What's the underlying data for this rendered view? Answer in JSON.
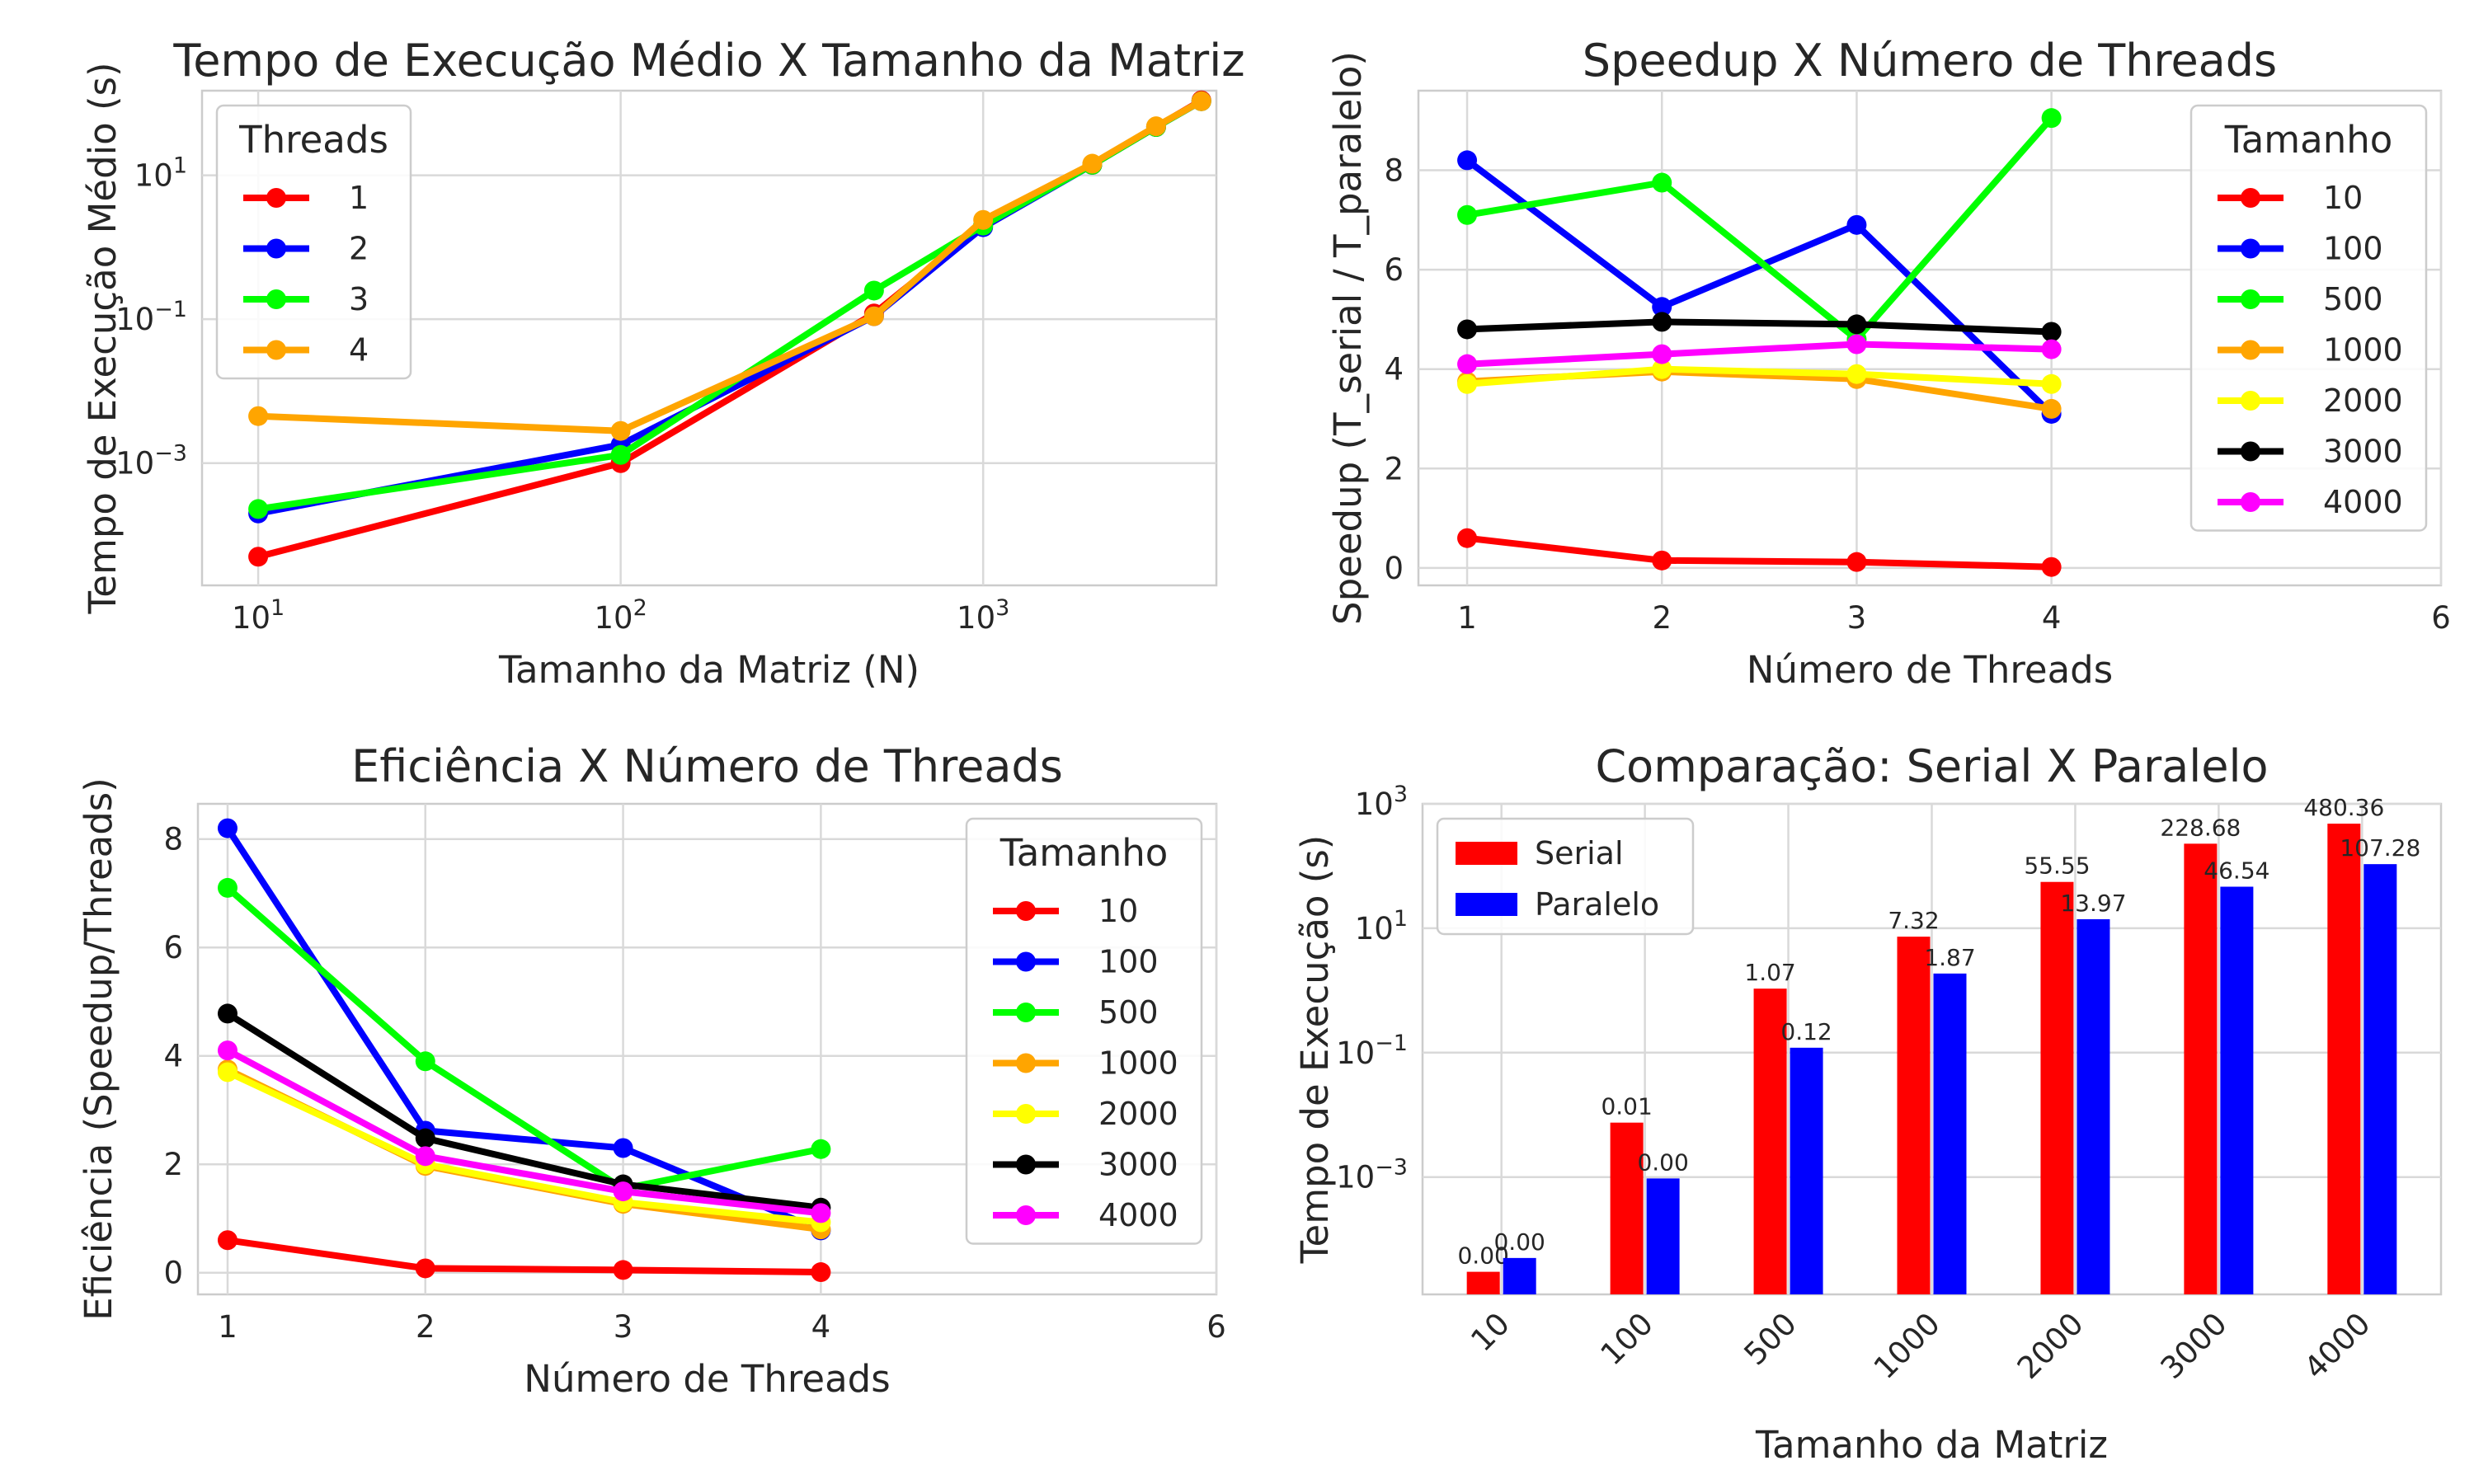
{
  "chart_data": [
    {
      "type": "line",
      "title": "Tempo de Execução Médio X Tamanho da Matriz",
      "xlabel": "Tamanho da Matriz (N)",
      "ylabel": "Tempo de Execução Médio (s)",
      "xscale": "log",
      "yscale": "log",
      "xlim": [
        7,
        4400
      ],
      "ylim": [
        2e-05,
        150
      ],
      "xticks": [
        {
          "v": 10,
          "label": "10^1"
        },
        {
          "v": 100,
          "label": "10^2"
        },
        {
          "v": 1000,
          "label": "10^3"
        }
      ],
      "yticks": [
        {
          "v": 0.001,
          "label": "10^-3"
        },
        {
          "v": 0.1,
          "label": "10^-1"
        },
        {
          "v": 10,
          "label": "10^1"
        }
      ],
      "legend": {
        "title": "Threads",
        "placement": "top-left"
      },
      "grid": true,
      "x": [
        10,
        100,
        500,
        1000,
        2000,
        3000,
        4000
      ],
      "series": [
        {
          "name": "1",
          "color": "#ff0000",
          "values": [
            5e-05,
            0.001,
            0.12,
            2.0,
            14.0,
            47.0,
            110.0
          ]
        },
        {
          "name": "2",
          "color": "#0000ff",
          "values": [
            0.0002,
            0.0018,
            0.11,
            1.9,
            14.0,
            47.0,
            107.0
          ]
        },
        {
          "name": "3",
          "color": "#00ff00",
          "values": [
            0.00023,
            0.0013,
            0.25,
            2.0,
            14.0,
            47.0,
            107.0
          ]
        },
        {
          "name": "4",
          "color": "#ffa500",
          "values": [
            0.0045,
            0.0028,
            0.11,
            2.4,
            14.5,
            48.0,
            107.0
          ]
        }
      ]
    },
    {
      "type": "line",
      "title": "Speedup X Número de Threads",
      "xlabel": "Número de Threads",
      "ylabel": "Speedup (T_serial / T_paralelo)",
      "xlim": [
        0.75,
        6
      ],
      "ylim": [
        -0.35,
        9.6
      ],
      "xticks": [
        {
          "v": 1,
          "label": "1"
        },
        {
          "v": 2,
          "label": "2"
        },
        {
          "v": 3,
          "label": "3"
        },
        {
          "v": 4,
          "label": "4"
        },
        {
          "v": 6,
          "label": "6"
        }
      ],
      "yticks": [
        {
          "v": 0,
          "label": "0"
        },
        {
          "v": 2,
          "label": "2"
        },
        {
          "v": 4,
          "label": "4"
        },
        {
          "v": 6,
          "label": "6"
        },
        {
          "v": 8,
          "label": "8"
        }
      ],
      "legend": {
        "title": "Tamanho",
        "placement": "top-right"
      },
      "grid": true,
      "x": [
        1,
        2,
        3,
        4
      ],
      "series": [
        {
          "name": "10",
          "color": "#ff0000",
          "values": [
            0.6,
            0.15,
            0.12,
            0.02
          ]
        },
        {
          "name": "100",
          "color": "#0000ff",
          "values": [
            8.2,
            5.25,
            6.9,
            3.1
          ]
        },
        {
          "name": "500",
          "color": "#00ff00",
          "values": [
            7.1,
            7.75,
            4.6,
            9.05
          ]
        },
        {
          "name": "1000",
          "color": "#ffa500",
          "values": [
            3.75,
            3.95,
            3.8,
            3.2
          ]
        },
        {
          "name": "2000",
          "color": "#ffff00",
          "values": [
            3.7,
            4.0,
            3.9,
            3.7
          ]
        },
        {
          "name": "3000",
          "color": "#000000",
          "values": [
            4.8,
            4.95,
            4.9,
            4.75
          ]
        },
        {
          "name": "4000",
          "color": "#ff00ff",
          "values": [
            4.1,
            4.3,
            4.5,
            4.4
          ]
        }
      ]
    },
    {
      "type": "line",
      "title": "Eficiência X Número de Threads",
      "xlabel": "Número de Threads",
      "ylabel": "Eficiência (Speedup/Threads)",
      "xlim": [
        0.85,
        6
      ],
      "ylim": [
        -0.4,
        8.65
      ],
      "xticks": [
        {
          "v": 1,
          "label": "1"
        },
        {
          "v": 2,
          "label": "2"
        },
        {
          "v": 3,
          "label": "3"
        },
        {
          "v": 4,
          "label": "4"
        },
        {
          "v": 6,
          "label": "6"
        }
      ],
      "yticks": [
        {
          "v": 0,
          "label": "0"
        },
        {
          "v": 2,
          "label": "2"
        },
        {
          "v": 4,
          "label": "4"
        },
        {
          "v": 6,
          "label": "6"
        },
        {
          "v": 8,
          "label": "8"
        }
      ],
      "legend": {
        "title": "Tamanho",
        "placement": "top-right"
      },
      "grid": true,
      "x": [
        1,
        2,
        3,
        4
      ],
      "series": [
        {
          "name": "10",
          "color": "#ff0000",
          "values": [
            0.6,
            0.08,
            0.05,
            0.01
          ]
        },
        {
          "name": "100",
          "color": "#0000ff",
          "values": [
            8.2,
            2.62,
            2.3,
            0.78
          ]
        },
        {
          "name": "500",
          "color": "#00ff00",
          "values": [
            7.1,
            3.9,
            1.55,
            2.28
          ]
        },
        {
          "name": "1000",
          "color": "#ffa500",
          "values": [
            3.75,
            1.97,
            1.27,
            0.8
          ]
        },
        {
          "name": "2000",
          "color": "#ffff00",
          "values": [
            3.7,
            2.0,
            1.3,
            0.93
          ]
        },
        {
          "name": "3000",
          "color": "#000000",
          "values": [
            4.78,
            2.48,
            1.63,
            1.2
          ]
        },
        {
          "name": "4000",
          "color": "#ff00ff",
          "values": [
            4.1,
            2.15,
            1.5,
            1.1
          ]
        }
      ]
    },
    {
      "type": "bar",
      "title": "Comparação: Serial X Paralelo",
      "xlabel": "Tamanho da Matriz",
      "ylabel": "Tempo de Execução (s)",
      "yscale": "log",
      "ylim": [
        1.3e-05,
        1000
      ],
      "yticks": [
        {
          "v": 0.001,
          "label": "10^-3"
        },
        {
          "v": 0.1,
          "label": "10^-1"
        },
        {
          "v": 10,
          "label": "10^1"
        },
        {
          "v": 1000,
          "label": "10^3"
        }
      ],
      "legend": {
        "placement": "top-left"
      },
      "grid": true,
      "categories": [
        "10",
        "100",
        "500",
        "1000",
        "2000",
        "3000",
        "4000"
      ],
      "series": [
        {
          "name": "Serial",
          "color": "#ff0000",
          "values": [
            3e-05,
            0.0075,
            1.07,
            7.32,
            55.55,
            228.68,
            480.36
          ],
          "labels": [
            "0.00",
            "0.01",
            "1.07",
            "7.32",
            "55.55",
            "228.68",
            "480.36"
          ]
        },
        {
          "name": "Paralelo",
          "color": "#0000ff",
          "values": [
            5e-05,
            0.00095,
            0.12,
            1.87,
            13.97,
            46.54,
            107.28
          ],
          "labels": [
            "0.00",
            "0.00",
            "0.12",
            "1.87",
            "13.97",
            "46.54",
            "107.28"
          ]
        }
      ]
    }
  ]
}
